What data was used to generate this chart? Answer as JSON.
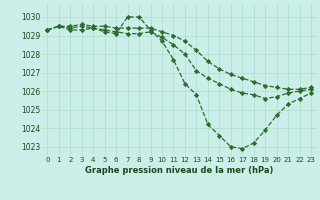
{
  "title": "Graphe pression niveau de la mer (hPa)",
  "bg_color": "#cceee8",
  "grid_color": "#aaddcc",
  "line_color": "#2d6b2d",
  "ylim": [
    1022.5,
    1030.7
  ],
  "yticks": [
    1023,
    1024,
    1025,
    1026,
    1027,
    1028,
    1029,
    1030
  ],
  "series": [
    [
      1029.3,
      1029.5,
      1029.3,
      1029.3,
      1029.4,
      1029.2,
      1029.1,
      1030.0,
      1030.0,
      1029.3,
      1028.7,
      1027.7,
      1026.4,
      1025.8,
      1024.2,
      1023.6,
      1023.0,
      1022.9,
      1023.2,
      1023.9,
      1024.7,
      1025.3,
      1025.6,
      1025.9
    ],
    [
      1029.3,
      1029.5,
      1029.4,
      1029.5,
      1029.4,
      1029.3,
      1029.2,
      1029.1,
      1029.1,
      1029.2,
      1028.9,
      1028.5,
      1028.0,
      1027.1,
      1026.7,
      1026.4,
      1026.1,
      1025.9,
      1025.8,
      1025.6,
      1025.7,
      1025.9,
      1026.0,
      1026.1
    ],
    [
      1029.3,
      1029.5,
      1029.5,
      1029.6,
      1029.5,
      1029.5,
      1029.4,
      1029.4,
      1029.4,
      1029.4,
      1029.2,
      1029.0,
      1028.7,
      1028.2,
      1027.6,
      1027.2,
      1026.9,
      1026.7,
      1026.5,
      1026.3,
      1026.2,
      1026.1,
      1026.1,
      1026.2
    ]
  ]
}
